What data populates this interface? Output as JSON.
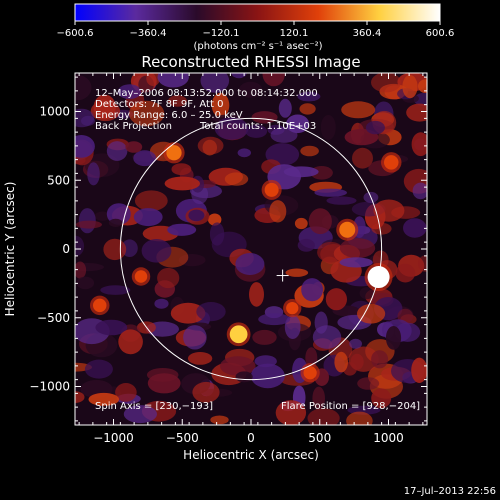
{
  "chart_data": {
    "type": "heatmap",
    "title": "Reconstructed RHESSI Image",
    "xlabel": "Heliocentric X (arcsec)",
    "ylabel": "Heliocentric Y (arcsec)",
    "xlim": [
      -1280,
      1280
    ],
    "ylim": [
      -1280,
      1280
    ],
    "x_ticks": [
      -1000,
      -500,
      0,
      500,
      1000
    ],
    "y_ticks": [
      -1000,
      -500,
      0,
      500,
      1000
    ],
    "x_tick_labels": [
      "−1000",
      "−500",
      "0",
      "500",
      "1000"
    ],
    "y_tick_labels": [
      "−1000",
      "−500",
      "0",
      "500",
      "1000"
    ],
    "colorbar": {
      "range": [
        -600.6,
        600.6
      ],
      "tick_labels": [
        "−600.6",
        "−360.4",
        "−120.1",
        "120.1",
        "360.4",
        "600.6"
      ],
      "unit": "(photons cm⁻² s⁻¹ asec⁻²)",
      "colors": [
        "#0000ff",
        "#5b2a9e",
        "#2a0a2a",
        "#8a1414",
        "#e0400a",
        "#ffd040",
        "#ffffff"
      ]
    },
    "annotations": {
      "time_range": "12–May–2006 08:13:52.000 to 08:14:32.000",
      "detectors": "Detectors: 7F 8F 9F, Att 0",
      "energy": "Energy Range: 6.0 – 25.0 keV",
      "method": "Back Projection",
      "counts": "Total counts: 1.10E+03",
      "spin_axis": "Spin Axis = [230,−193]",
      "flare_position": "Flare Position = [928,−204]"
    },
    "solar_limb": {
      "center": [
        0,
        0
      ],
      "radius": 950
    },
    "map_center_marker": [
      230,
      -193
    ],
    "flare": {
      "x": 928,
      "y": -204
    },
    "bright_sources": [
      {
        "x": 928,
        "y": -204,
        "value": 600
      },
      {
        "x": -90,
        "y": -620,
        "value": 430
      },
      {
        "x": 700,
        "y": 140,
        "value": 360
      },
      {
        "x": -560,
        "y": 700,
        "value": 330
      },
      {
        "x": 1020,
        "y": 630,
        "value": 300
      },
      {
        "x": 150,
        "y": 430,
        "value": 280
      },
      {
        "x": -1100,
        "y": -410,
        "value": 260
      },
      {
        "x": 430,
        "y": -900,
        "value": 250
      },
      {
        "x": -800,
        "y": -200,
        "value": 220
      },
      {
        "x": 300,
        "y": -430,
        "value": 210
      }
    ],
    "colors": {
      "background": "#000000",
      "foreground": "#ffffff"
    }
  },
  "footer": {
    "timestamp": "17–Jul–2013 22:56"
  }
}
